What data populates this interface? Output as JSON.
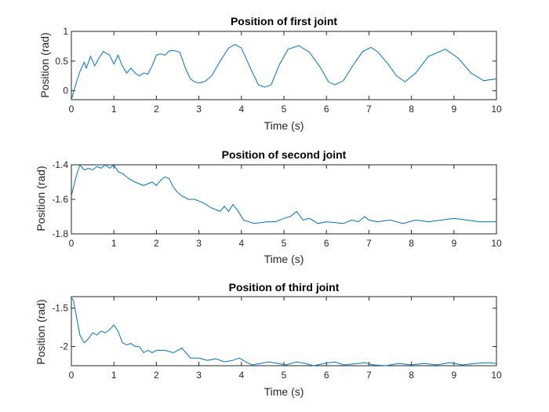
{
  "colors": {
    "series": "#0072BD",
    "axis": "#262626",
    "background": "#ffffff"
  },
  "chart_data": [
    {
      "type": "line",
      "title": "Position of first joint",
      "xlabel": "Time (s)",
      "ylabel": "Position (rad)",
      "xlim": [
        0,
        10
      ],
      "ylim": [
        -0.15,
        1
      ],
      "xticks": [
        0,
        1,
        2,
        3,
        4,
        5,
        6,
        7,
        8,
        9,
        10
      ],
      "xtick_labels": [
        "0",
        "1",
        "2",
        "3",
        "4",
        "5",
        "6",
        "7",
        "8",
        "9",
        "10"
      ],
      "yticks": [
        0,
        0.5,
        1
      ],
      "ytick_labels": [
        "0",
        "0.5",
        "1"
      ],
      "grid": false,
      "series": [
        {
          "x": [
            0.0,
            0.1,
            0.2,
            0.3,
            0.35,
            0.45,
            0.55,
            0.65,
            0.75,
            0.9,
            1.0,
            1.1,
            1.2,
            1.3,
            1.4,
            1.5,
            1.6,
            1.7,
            1.8,
            1.9,
            2.0,
            2.1,
            2.2,
            2.3,
            2.4,
            2.55,
            2.7,
            2.8,
            2.9,
            3.0,
            3.15,
            3.3,
            3.5,
            3.7,
            3.85,
            4.0,
            4.2,
            4.4,
            4.55,
            4.7,
            4.9,
            5.1,
            5.35,
            5.6,
            5.85,
            6.05,
            6.2,
            6.4,
            6.6,
            6.85,
            7.05,
            7.2,
            7.45,
            7.65,
            7.85,
            8.1,
            8.4,
            8.8,
            9.1,
            9.4,
            9.7,
            10.0
          ],
          "y": [
            -0.15,
            0.1,
            0.32,
            0.48,
            0.38,
            0.58,
            0.42,
            0.55,
            0.66,
            0.6,
            0.45,
            0.6,
            0.42,
            0.3,
            0.38,
            0.3,
            0.25,
            0.3,
            0.28,
            0.42,
            0.6,
            0.62,
            0.6,
            0.67,
            0.68,
            0.65,
            0.35,
            0.2,
            0.15,
            0.13,
            0.16,
            0.25,
            0.5,
            0.72,
            0.78,
            0.72,
            0.4,
            0.1,
            0.06,
            0.1,
            0.45,
            0.7,
            0.76,
            0.65,
            0.4,
            0.15,
            0.1,
            0.17,
            0.4,
            0.66,
            0.73,
            0.66,
            0.45,
            0.25,
            0.15,
            0.3,
            0.58,
            0.7,
            0.55,
            0.3,
            0.17,
            0.2
          ]
        }
      ]
    },
    {
      "type": "line",
      "title": "Position of second joint",
      "xlabel": "Time (s)",
      "ylabel": "Position (rad)",
      "xlim": [
        0,
        10
      ],
      "ylim": [
        -1.8,
        -1.4
      ],
      "xticks": [
        0,
        1,
        2,
        3,
        4,
        5,
        6,
        7,
        8,
        9,
        10
      ],
      "xtick_labels": [
        "0",
        "1",
        "2",
        "3",
        "4",
        "5",
        "6",
        "7",
        "8",
        "9",
        "10"
      ],
      "yticks": [
        -1.8,
        -1.6,
        -1.4
      ],
      "ytick_labels": [
        "-1.8",
        "-1.6",
        "-1.4"
      ],
      "grid": false,
      "series": [
        {
          "x": [
            0.0,
            0.1,
            0.2,
            0.3,
            0.4,
            0.5,
            0.6,
            0.7,
            0.8,
            0.9,
            1.0,
            1.1,
            1.2,
            1.35,
            1.5,
            1.7,
            1.9,
            2.0,
            2.1,
            2.2,
            2.3,
            2.4,
            2.5,
            2.6,
            2.75,
            2.9,
            3.1,
            3.3,
            3.5,
            3.6,
            3.7,
            3.8,
            3.9,
            4.05,
            4.3,
            4.6,
            4.8,
            5.0,
            5.15,
            5.3,
            5.45,
            5.6,
            5.8,
            6.0,
            6.4,
            6.6,
            6.75,
            6.9,
            7.0,
            7.2,
            7.5,
            7.8,
            8.1,
            8.4,
            8.7,
            9.0,
            9.3,
            9.6,
            10.0
          ],
          "y": [
            -1.58,
            -1.48,
            -1.39,
            -1.43,
            -1.42,
            -1.43,
            -1.41,
            -1.42,
            -1.4,
            -1.42,
            -1.4,
            -1.44,
            -1.45,
            -1.48,
            -1.5,
            -1.52,
            -1.5,
            -1.52,
            -1.49,
            -1.47,
            -1.48,
            -1.53,
            -1.56,
            -1.58,
            -1.6,
            -1.6,
            -1.62,
            -1.65,
            -1.67,
            -1.64,
            -1.67,
            -1.63,
            -1.66,
            -1.72,
            -1.74,
            -1.73,
            -1.73,
            -1.71,
            -1.7,
            -1.67,
            -1.72,
            -1.71,
            -1.74,
            -1.73,
            -1.74,
            -1.72,
            -1.73,
            -1.7,
            -1.72,
            -1.73,
            -1.72,
            -1.74,
            -1.72,
            -1.73,
            -1.72,
            -1.71,
            -1.72,
            -1.73,
            -1.73
          ]
        }
      ]
    },
    {
      "type": "line",
      "title": "Position of third joint",
      "xlabel": "Time (s)",
      "ylabel": "Position (rad)",
      "xlim": [
        0,
        10
      ],
      "ylim": [
        -2.25,
        -1.35
      ],
      "xticks": [
        0,
        1,
        2,
        3,
        4,
        5,
        6,
        7,
        8,
        9,
        10
      ],
      "xtick_labels": [
        "0",
        "1",
        "2",
        "3",
        "4",
        "5",
        "6",
        "7",
        "8",
        "9",
        "10"
      ],
      "yticks": [
        -2,
        -1.5
      ],
      "ytick_labels": [
        "-2",
        "-1.5"
      ],
      "grid": false,
      "series": [
        {
          "x": [
            0.0,
            0.05,
            0.1,
            0.2,
            0.3,
            0.4,
            0.5,
            0.6,
            0.7,
            0.8,
            0.9,
            1.0,
            1.1,
            1.2,
            1.3,
            1.4,
            1.5,
            1.6,
            1.7,
            1.8,
            1.9,
            2.0,
            2.2,
            2.4,
            2.6,
            2.8,
            3.0,
            3.2,
            3.4,
            3.6,
            3.8,
            3.95,
            4.1,
            4.25,
            4.45,
            4.65,
            4.85,
            5.05,
            5.3,
            5.5,
            5.7,
            5.95,
            6.2,
            6.4,
            6.6,
            6.9,
            7.1,
            7.4,
            7.7,
            8.0,
            8.3,
            8.6,
            8.9,
            9.2,
            9.5,
            9.8,
            10.0
          ],
          "y": [
            -1.36,
            -1.4,
            -1.55,
            -1.85,
            -1.95,
            -1.9,
            -1.82,
            -1.85,
            -1.8,
            -1.82,
            -1.78,
            -1.72,
            -1.8,
            -1.95,
            -1.98,
            -1.96,
            -2.0,
            -2.0,
            -2.08,
            -2.05,
            -2.08,
            -2.05,
            -2.05,
            -2.08,
            -2.02,
            -2.15,
            -2.15,
            -2.18,
            -2.16,
            -2.2,
            -2.18,
            -2.15,
            -2.2,
            -2.24,
            -2.22,
            -2.2,
            -2.22,
            -2.24,
            -2.2,
            -2.22,
            -2.25,
            -2.22,
            -2.2,
            -2.24,
            -2.23,
            -2.21,
            -2.24,
            -2.25,
            -2.22,
            -2.24,
            -2.22,
            -2.24,
            -2.21,
            -2.24,
            -2.22,
            -2.21,
            -2.22
          ]
        }
      ]
    }
  ]
}
